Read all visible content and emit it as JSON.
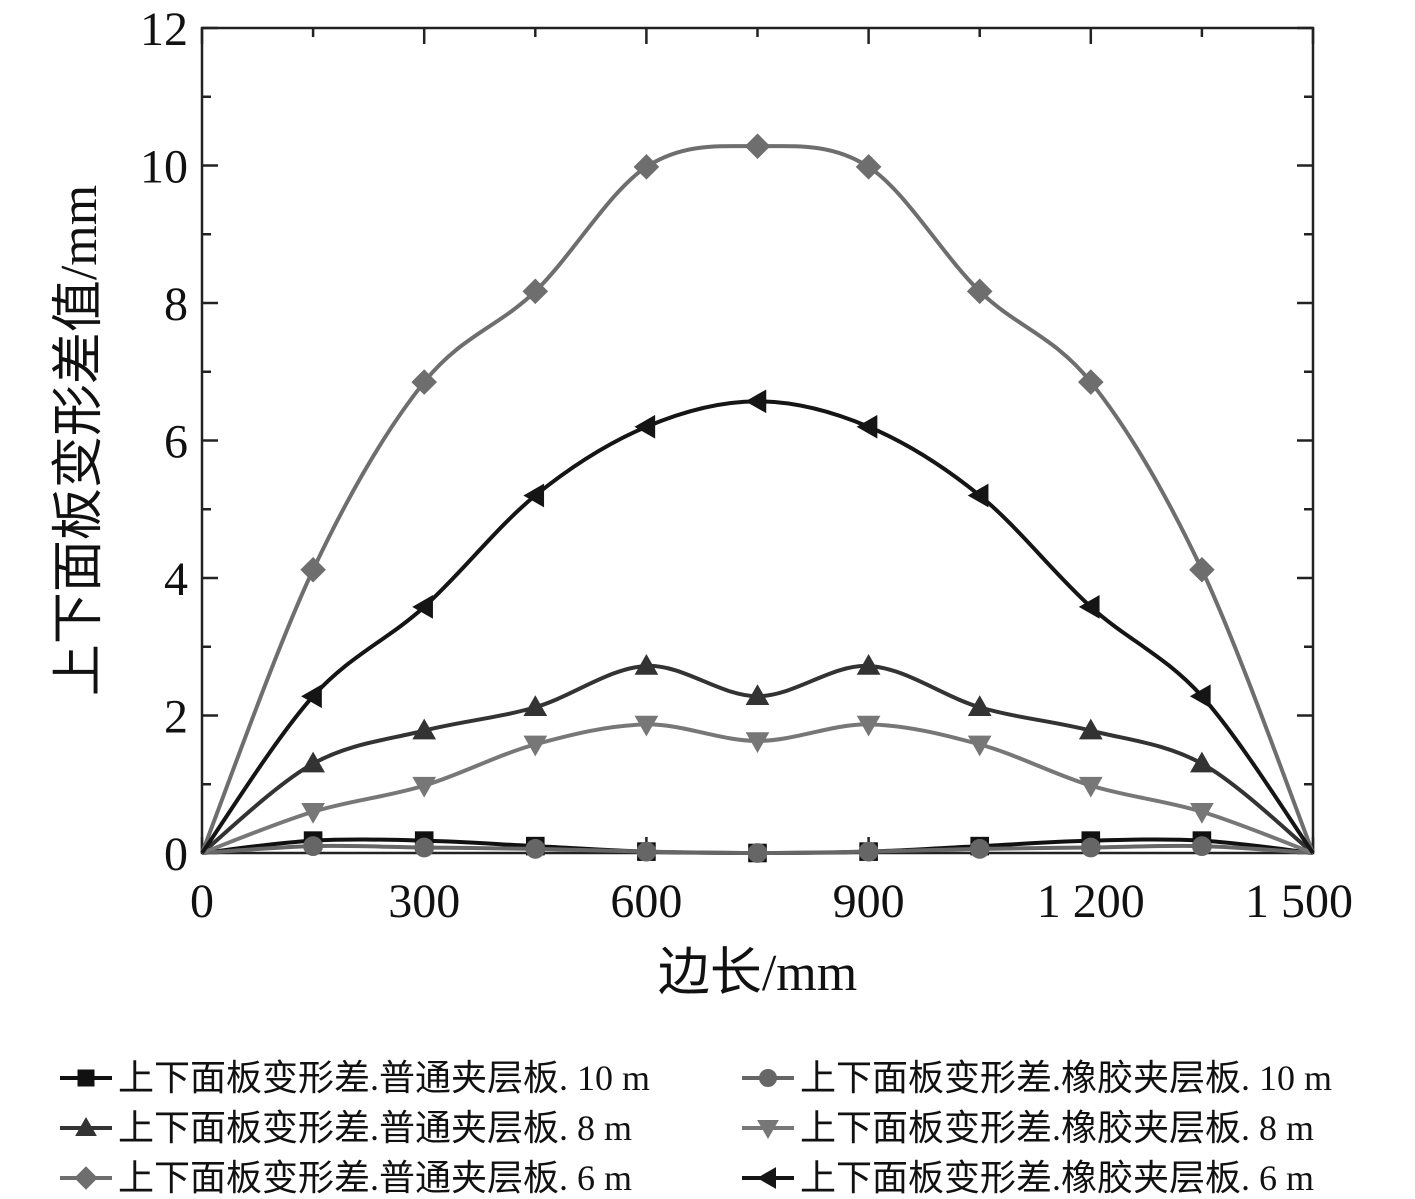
{
  "chart_data": {
    "type": "line",
    "xlabel": "边长/mm",
    "ylabel": "上下面板变形差值/mm",
    "xlim": [
      0,
      1500
    ],
    "ylim": [
      0,
      12
    ],
    "x_ticks": [
      0,
      300,
      600,
      900,
      1200,
      1500
    ],
    "x_tick_labels": [
      "0",
      "300",
      "600",
      "900",
      "1 200",
      "1 500"
    ],
    "y_ticks": [
      0,
      2,
      4,
      6,
      8,
      10,
      12
    ],
    "y_tick_labels": [
      "0",
      "2",
      "4",
      "6",
      "8",
      "10",
      "12"
    ],
    "grid": false,
    "legend_position": "bottom",
    "x": [
      0,
      150,
      300,
      450,
      600,
      750,
      900,
      1050,
      1200,
      1350,
      1500
    ],
    "series": [
      {
        "name": "上下面板变形差.普通夹层板. 10 m",
        "marker": "square",
        "color": "#111111",
        "values": [
          0,
          0.18,
          0.18,
          0.1,
          0.02,
          0.0,
          0.02,
          0.1,
          0.18,
          0.18,
          0
        ]
      },
      {
        "name": "上下面板变形差.橡胶夹层板. 10 m",
        "marker": "circle",
        "color": "#666666",
        "values": [
          0,
          0.1,
          0.08,
          0.06,
          0.02,
          0.0,
          0.02,
          0.06,
          0.08,
          0.1,
          0
        ]
      },
      {
        "name": "上下面板变形差.普通夹层板. 8 m",
        "marker": "triangle-up",
        "color": "#333333",
        "values": [
          0,
          1.3,
          1.78,
          2.12,
          2.72,
          2.28,
          2.72,
          2.12,
          1.78,
          1.3,
          0
        ]
      },
      {
        "name": "上下面板变形差.橡胶夹层板. 8 m",
        "marker": "triangle-down",
        "color": "#777777",
        "values": [
          0,
          0.6,
          0.98,
          1.58,
          1.87,
          1.63,
          1.87,
          1.58,
          0.98,
          0.6,
          0
        ]
      },
      {
        "name": "上下面板变形差.普通夹层板. 6 m",
        "marker": "diamond",
        "color": "#6e6e6e",
        "values": [
          0,
          4.12,
          6.85,
          8.17,
          9.98,
          10.28,
          9.98,
          8.17,
          6.85,
          4.12,
          0
        ]
      },
      {
        "name": "上下面板变形差.橡胶夹层板. 6 m",
        "marker": "triangle-left",
        "color": "#151515",
        "values": [
          0,
          2.28,
          3.58,
          5.2,
          6.2,
          6.57,
          6.2,
          5.2,
          3.58,
          2.28,
          0
        ]
      }
    ]
  }
}
